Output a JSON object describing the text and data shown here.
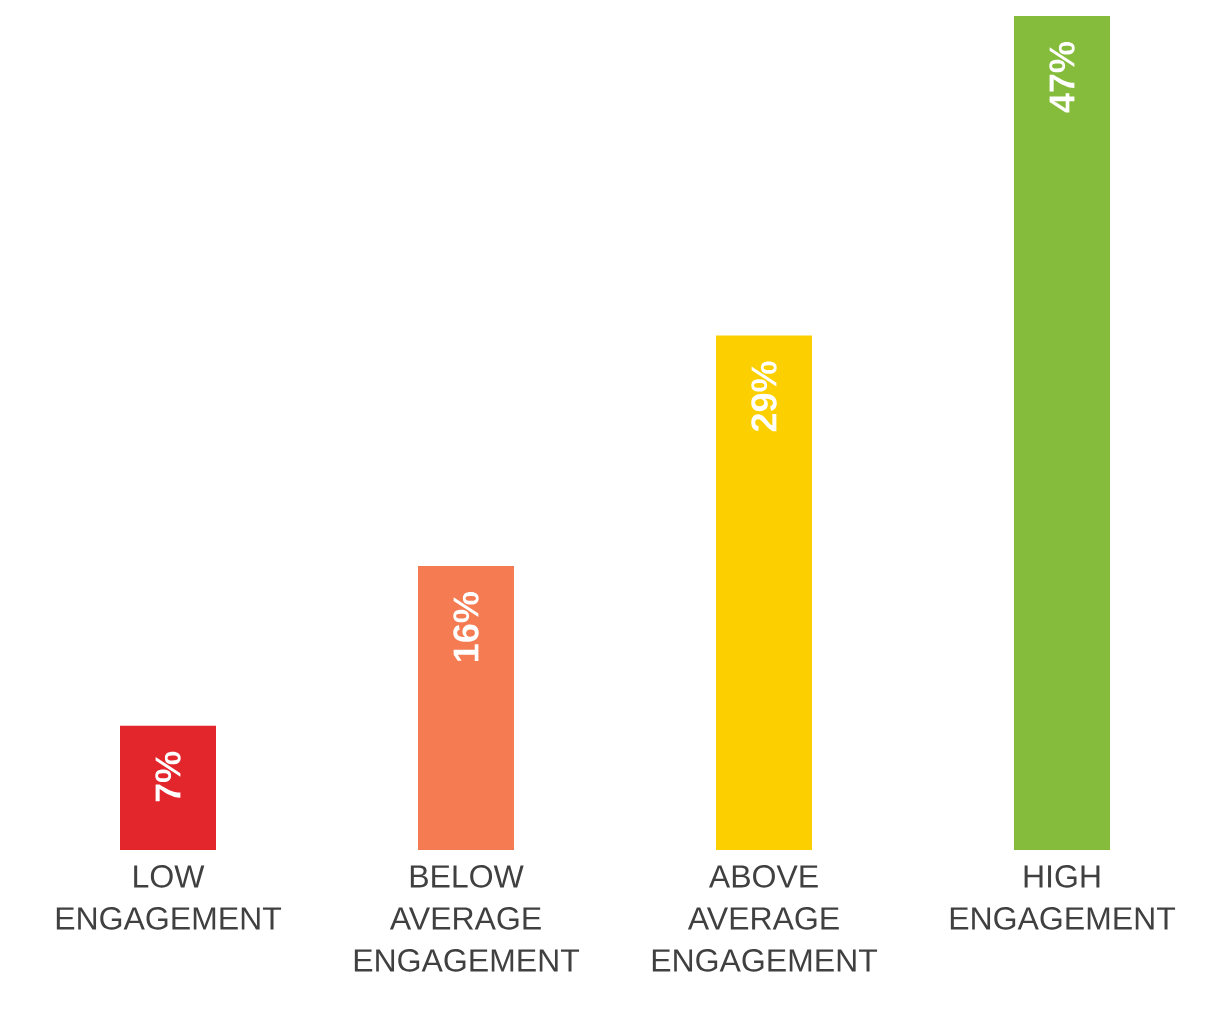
{
  "chart_data": {
    "type": "bar",
    "categories": [
      "LOW ENGAGEMENT",
      "BELOW AVERAGE ENGAGEMENT",
      "ABOVE AVERAGE ENGAGEMENT",
      "HIGH ENGAGEMENT"
    ],
    "values": [
      7,
      16,
      29,
      47
    ],
    "value_labels": [
      "7%",
      "16%",
      "29%",
      "47%"
    ],
    "colors": [
      "#e3262b",
      "#f47b52",
      "#fcd000",
      "#86bc3c"
    ]
  }
}
